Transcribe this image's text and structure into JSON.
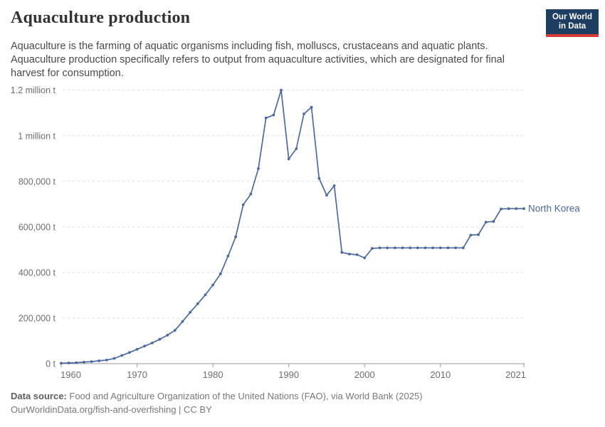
{
  "header": {
    "title": "Aquaculture production",
    "subtitle_lines": [
      "Aquaculture is the farming of aquatic organisms including fish, molluscs, crustaceans and aquatic plants.",
      "Aquaculture production specifically refers to output from aquaculture activities, which are designated for final",
      "harvest for consumption."
    ]
  },
  "logo": {
    "line1": "Our World",
    "line2": "in Data"
  },
  "chart_data": {
    "type": "line",
    "title": "Aquaculture production",
    "unit": "t",
    "grid": "horizontal-dashed",
    "legend_position": "end-of-line",
    "xlim": [
      1960,
      2021
    ],
    "ylim": [
      0,
      1200000
    ],
    "x": [
      1960,
      1961,
      1962,
      1963,
      1964,
      1965,
      1966,
      1967,
      1968,
      1969,
      1970,
      1971,
      1972,
      1973,
      1974,
      1975,
      1976,
      1977,
      1978,
      1979,
      1980,
      1981,
      1982,
      1983,
      1984,
      1985,
      1986,
      1987,
      1988,
      1989,
      1990,
      1991,
      1992,
      1993,
      1994,
      1995,
      1996,
      1997,
      1998,
      1999,
      2000,
      2001,
      2002,
      2003,
      2004,
      2005,
      2006,
      2007,
      2008,
      2009,
      2010,
      2011,
      2012,
      2013,
      2014,
      2015,
      2016,
      2017,
      2018,
      2019,
      2020,
      2021
    ],
    "series": [
      {
        "name": "North Korea",
        "color": "#4c6a9c",
        "values": [
          1800,
          3000,
          4500,
          6500,
          9000,
          12500,
          16000,
          23000,
          36000,
          49000,
          63000,
          77000,
          91000,
          107000,
          125000,
          146000,
          185000,
          225000,
          263000,
          302000,
          345000,
          394000,
          472000,
          556000,
          697000,
          744000,
          856000,
          1078000,
          1091000,
          1200000,
          898000,
          943000,
          1096000,
          1125000,
          813000,
          739000,
          781000,
          488000,
          481000,
          478000,
          464000,
          506000,
          508000,
          508000,
          508000,
          508000,
          508000,
          508000,
          508000,
          508000,
          508000,
          508000,
          508000,
          508000,
          564000,
          566000,
          621000,
          624000,
          679000,
          680000,
          680000,
          680000
        ]
      }
    ],
    "x_ticks": [
      {
        "value": 1960,
        "label": "1960"
      },
      {
        "value": 1970,
        "label": "1970"
      },
      {
        "value": 1980,
        "label": "1980"
      },
      {
        "value": 1990,
        "label": "1990"
      },
      {
        "value": 2000,
        "label": "2000"
      },
      {
        "value": 2010,
        "label": "2010"
      },
      {
        "value": 2021,
        "label": "2021"
      }
    ],
    "y_ticks": [
      {
        "value": 0,
        "label": "0 t"
      },
      {
        "value": 200000,
        "label": "200,000 t"
      },
      {
        "value": 400000,
        "label": "400,000 t"
      },
      {
        "value": 600000,
        "label": "600,000 t"
      },
      {
        "value": 800000,
        "label": "800,000 t"
      },
      {
        "value": 1000000,
        "label": "1 million t"
      },
      {
        "value": 1200000,
        "label": "1.2 million t"
      }
    ]
  },
  "footer": {
    "datasource_label": "Data source:",
    "datasource_text": "Food and Agriculture Organization of the United Nations (FAO), via World Bank (2025)",
    "license_line": "OurWorldinData.org/fish-and-overfishing | CC BY"
  },
  "colors": {
    "accent": "#4c6a9c",
    "logo_navy": "#1d3d63",
    "logo_red": "#d73a31"
  }
}
